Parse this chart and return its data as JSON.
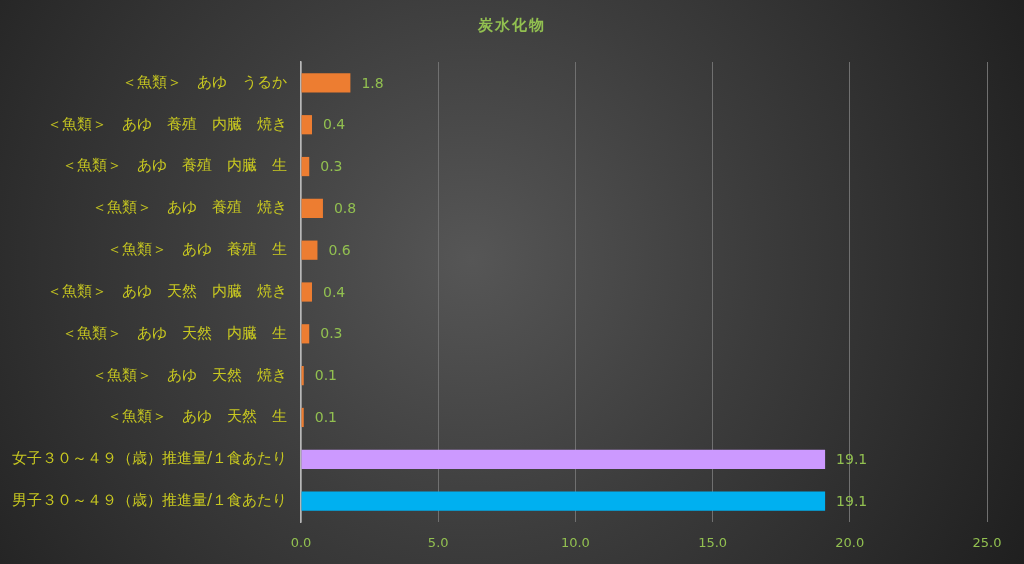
{
  "chart_data": {
    "type": "bar",
    "orientation": "horizontal",
    "title": "炭水化物",
    "categories": [
      "＜魚類＞　あゆ　うるか",
      "＜魚類＞　あゆ　養殖　内臓　焼き",
      "＜魚類＞　あゆ　養殖　内臓　生",
      "＜魚類＞　あゆ　養殖　焼き",
      "＜魚類＞　あゆ　養殖　生",
      "＜魚類＞　あゆ　天然　内臓　焼き",
      "＜魚類＞　あゆ　天然　内臓　生",
      "＜魚類＞　あゆ　天然　焼き",
      "＜魚類＞　あゆ　天然　生",
      "女子３０～４９（歳）推進量/１食あたり",
      "男子３０～４９（歳）推進量/１食あたり"
    ],
    "values": [
      1.8,
      0.4,
      0.3,
      0.8,
      0.6,
      0.4,
      0.3,
      0.1,
      0.1,
      19.1,
      19.1
    ],
    "colors": [
      "#ed7d31",
      "#ed7d31",
      "#ed7d31",
      "#ed7d31",
      "#ed7d31",
      "#ed7d31",
      "#ed7d31",
      "#ed7d31",
      "#ed7d31",
      "#cc99ff",
      "#00b0f0"
    ],
    "xlim": [
      0,
      25
    ],
    "xticks": [
      {
        "value": 0,
        "label": "0.0"
      },
      {
        "value": 5,
        "label": "5.0"
      },
      {
        "value": 10,
        "label": "10.0"
      },
      {
        "value": 15,
        "label": "15.0"
      },
      {
        "value": 20,
        "label": "20.0"
      },
      {
        "value": 25,
        "label": "25.0"
      }
    ],
    "grid": "x",
    "data_labels": true
  }
}
